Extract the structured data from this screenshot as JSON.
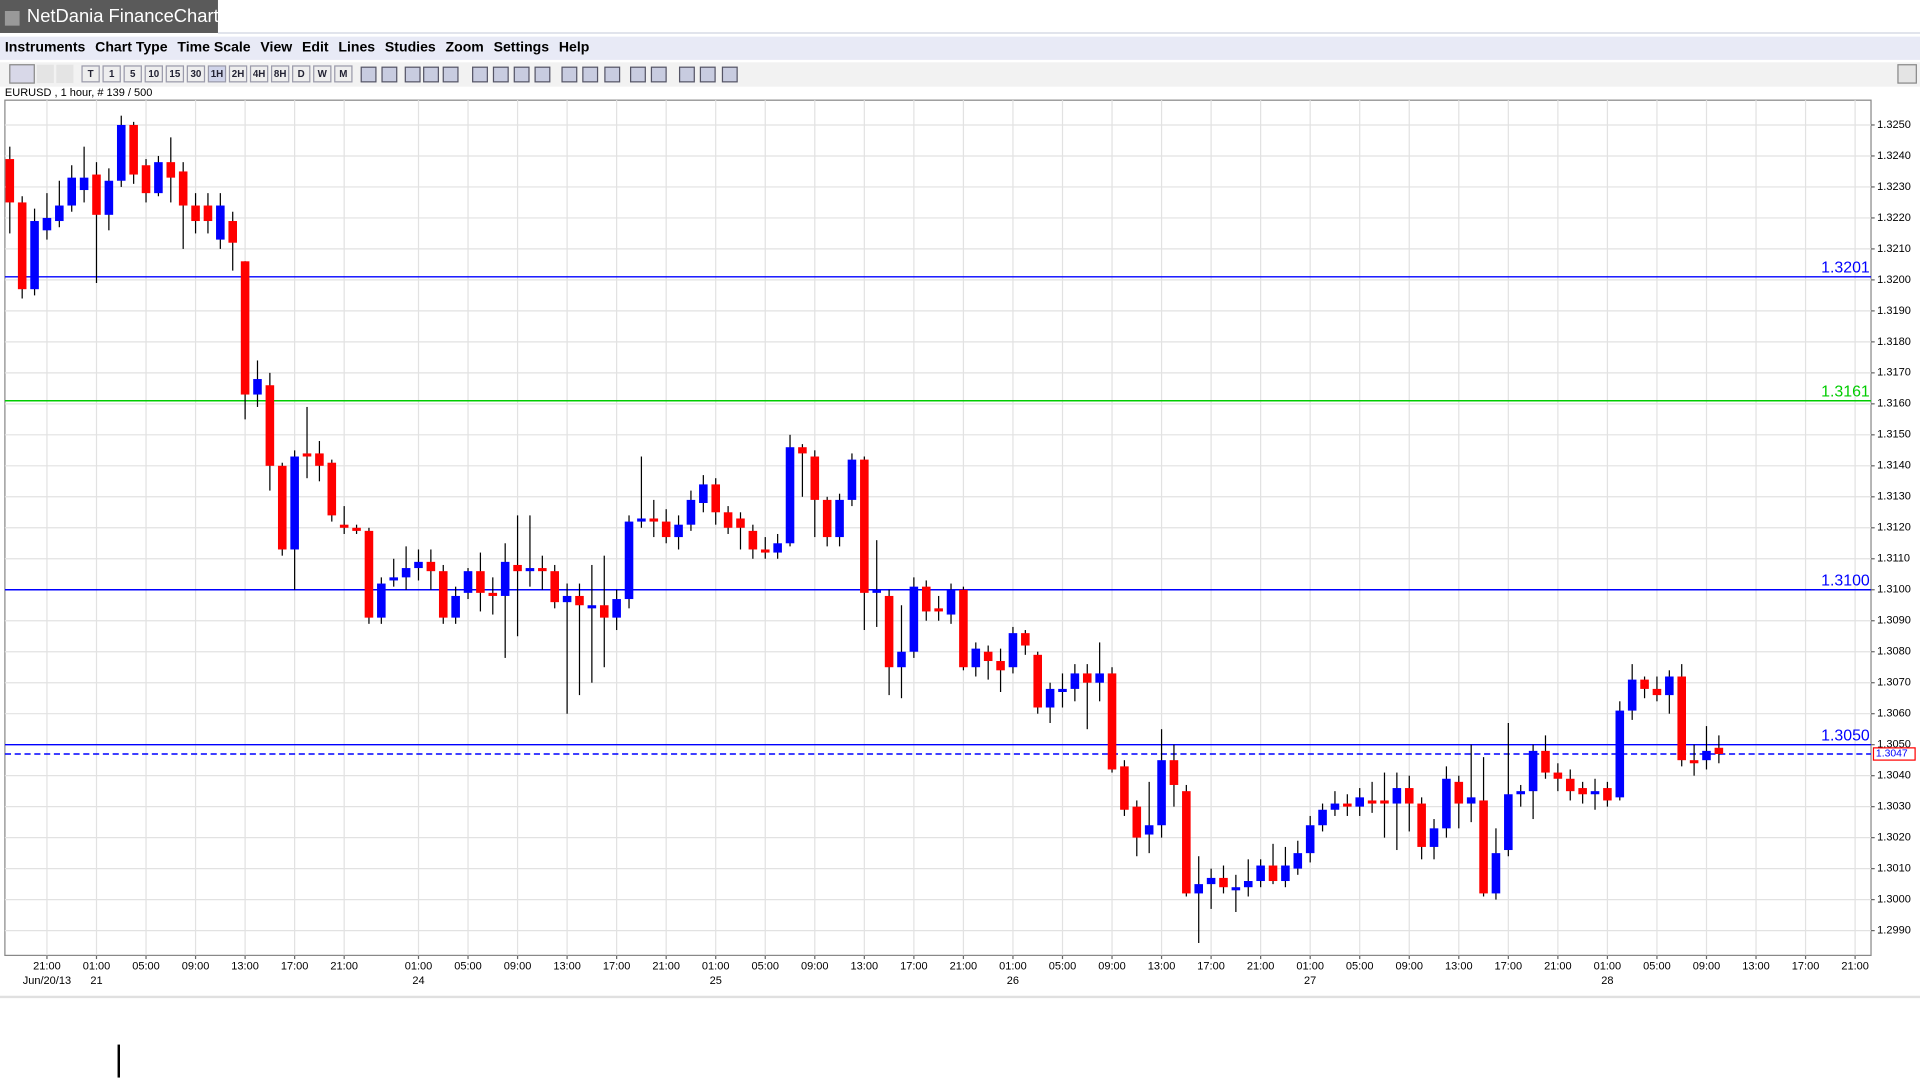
{
  "app": {
    "title": "NetDania FinanceChart"
  },
  "menu": [
    "Instruments",
    "Chart Type",
    "Time Scale",
    "View",
    "Edit",
    "Lines",
    "Studies",
    "Zoom",
    "Settings",
    "Help"
  ],
  "toolbar": {
    "timeframes": [
      "T",
      "1",
      "5",
      "10",
      "15",
      "30",
      "1H",
      "2H",
      "4H",
      "8H",
      "D",
      "W",
      "M"
    ]
  },
  "chart_data": {
    "type": "candlestick",
    "instrument_label": "EURUSD , 1 hour, # 139 / 500",
    "categories": [
      null,
      null,
      null,
      "21:00",
      null,
      null,
      null,
      "01:00",
      null,
      null,
      null,
      "05:00",
      null,
      null,
      null,
      "09:00",
      null,
      null,
      null,
      "13:00",
      null,
      null,
      null,
      "17:00",
      null,
      null,
      null,
      "21:00",
      null,
      null,
      null,
      null,
      null,
      "01:00",
      null,
      null,
      null,
      "05:00",
      null,
      null,
      null,
      "09:00",
      null,
      null,
      null,
      "13:00",
      null,
      null,
      null,
      "17:00",
      null,
      null,
      null,
      "21:00",
      null,
      null,
      null,
      "01:00",
      null,
      null,
      null,
      "05:00",
      null,
      null,
      null,
      "09:00",
      null,
      null,
      null,
      "13:00",
      null,
      null,
      null,
      "17:00",
      null,
      null,
      null,
      "21:00",
      null,
      null,
      null,
      "01:00",
      null,
      null,
      null,
      "05:00",
      null,
      null,
      null,
      "09:00",
      null,
      null,
      null,
      "13:00",
      null,
      null,
      null,
      "17:00",
      null,
      null,
      null,
      "21:00",
      null,
      null,
      null,
      "01:00",
      null,
      null,
      null,
      "05:00",
      null,
      null,
      null,
      "09:00",
      null,
      null,
      null,
      "13:00",
      null,
      null,
      null,
      "17:00",
      null,
      null,
      null,
      "21:00",
      null,
      null,
      null,
      "01:00",
      null,
      null,
      null,
      "05:00",
      null,
      null,
      null,
      "09:00",
      null,
      null,
      null,
      "13:00",
      null,
      null,
      null,
      "17:00",
      null,
      null,
      null,
      "21:00"
    ],
    "date_labels": [
      null,
      null,
      null,
      "Jun/20/13",
      null,
      null,
      null,
      "21",
      null,
      null,
      null,
      null,
      null,
      null,
      null,
      null,
      null,
      null,
      null,
      null,
      null,
      null,
      null,
      null,
      null,
      null,
      null,
      null,
      null,
      null,
      null,
      null,
      null,
      "24",
      null,
      null,
      null,
      null,
      null,
      null,
      null,
      null,
      null,
      null,
      null,
      null,
      null,
      null,
      null,
      null,
      null,
      null,
      null,
      null,
      null,
      null,
      null,
      "25",
      null,
      null,
      null,
      null,
      null,
      null,
      null,
      null,
      null,
      null,
      null,
      null,
      null,
      null,
      null,
      null,
      null,
      null,
      null,
      null,
      null,
      null,
      null,
      "26",
      null,
      null,
      null,
      null,
      null,
      null,
      null,
      null,
      null,
      null,
      null,
      null,
      null,
      null,
      null,
      null,
      null,
      null,
      null,
      null,
      null,
      null,
      null,
      "27",
      null,
      null,
      null,
      null,
      null,
      null,
      null,
      null,
      null,
      null,
      null,
      null,
      null,
      null,
      null,
      null,
      null,
      null,
      null,
      null,
      null,
      null,
      null,
      "28",
      null,
      null,
      null,
      null,
      null,
      null,
      null,
      null,
      null,
      null,
      null,
      null,
      null,
      null,
      null,
      null,
      null,
      null,
      null,
      null
    ],
    "open": [
      1.3239,
      1.3225,
      1.3197,
      1.3216,
      1.3219,
      1.3224,
      1.3229,
      1.3234,
      1.3221,
      1.3232,
      1.325,
      1.3237,
      1.3228,
      1.3238,
      1.3235,
      1.3224,
      1.3224,
      1.3213,
      1.3219,
      1.3206,
      1.3163,
      1.3166,
      1.314,
      1.3113,
      1.3144,
      1.3144,
      1.3141,
      1.3121,
      1.312,
      1.3119,
      1.3091,
      1.3103,
      1.3104,
      1.3107,
      1.3109,
      1.3106,
      1.3091,
      1.3099,
      1.3106,
      1.3099,
      1.3098,
      1.3108,
      1.3106,
      1.3107,
      1.3106,
      1.3096,
      1.3098,
      1.3094,
      1.3095,
      1.3091,
      1.3097,
      1.3122,
      1.3123,
      1.3122,
      1.3117,
      1.3121,
      1.3128,
      1.3134,
      1.3125,
      1.3123,
      1.3119,
      1.3113,
      1.3112,
      1.3115,
      1.3146,
      1.3143,
      1.3129,
      1.3117,
      1.3129,
      1.3142,
      1.3099,
      1.3098,
      1.3075,
      1.308,
      1.3101,
      1.3094,
      1.3092,
      1.31,
      1.3075,
      1.308,
      1.3077,
      1.3075,
      1.3086,
      1.3079,
      1.3062,
      1.3067,
      1.3068,
      1.3073,
      1.307,
      1.3073,
      1.3043,
      1.303,
      1.3021,
      1.3024,
      1.3045,
      1.3035,
      1.3002,
      1.3005,
      1.3007,
      1.3003,
      1.3004,
      1.3006,
      1.3011,
      1.3006,
      1.301,
      1.3015,
      1.3024,
      1.3029,
      1.3031,
      1.303,
      1.3032,
      1.3032,
      1.3031,
      1.3036,
      1.3031,
      1.3017,
      1.3023,
      1.3038,
      1.3031,
      1.3032,
      1.3002,
      1.3016,
      1.3034,
      1.3035,
      1.3048,
      1.3041,
      1.3039,
      1.3036,
      1.3034,
      1.3036,
      1.3033,
      1.3061,
      1.3071,
      1.3068,
      1.3066,
      1.3072,
      1.3045,
      1.3045,
      1.3049,
      null,
      null,
      null,
      null,
      null,
      null,
      null,
      null,
      null,
      null,
      null
    ],
    "high": [
      1.3243,
      1.3227,
      1.3223,
      1.3228,
      1.3232,
      1.3237,
      1.3243,
      1.3238,
      1.3236,
      1.3253,
      1.3251,
      1.3239,
      1.324,
      1.3246,
      1.3238,
      1.3228,
      1.3228,
      1.3228,
      1.3222,
      1.3206,
      1.3174,
      1.317,
      1.3141,
      1.3145,
      1.3159,
      1.3148,
      1.3142,
      1.3127,
      1.3121,
      1.312,
      1.3104,
      1.311,
      1.3114,
      1.3113,
      1.3113,
      1.3108,
      1.3101,
      1.3107,
      1.3112,
      1.3104,
      1.3115,
      1.3124,
      1.3124,
      1.3111,
      1.3108,
      1.3102,
      1.3102,
      1.3108,
      1.3111,
      1.31,
      1.3124,
      1.3143,
      1.3129,
      1.3126,
      1.3124,
      1.3132,
      1.3137,
      1.3136,
      1.3127,
      1.3125,
      1.3121,
      1.3117,
      1.3118,
      1.315,
      1.3147,
      1.3145,
      1.313,
      1.3131,
      1.3144,
      1.3143,
      1.3116,
      1.31,
      1.3095,
      1.3104,
      1.3103,
      1.3098,
      1.3102,
      1.3101,
      1.3083,
      1.3082,
      1.3081,
      1.3088,
      1.3087,
      1.308,
      1.307,
      1.3073,
      1.3076,
      1.3076,
      1.3083,
      1.3075,
      1.3045,
      1.3032,
      1.3038,
      1.3055,
      1.305,
      1.3037,
      1.3014,
      1.301,
      1.3011,
      1.3008,
      1.3013,
      1.3013,
      1.3018,
      1.3017,
      1.3019,
      1.3027,
      1.3031,
      1.3035,
      1.3034,
      1.3036,
      1.3038,
      1.3041,
      1.3041,
      1.304,
      1.3033,
      1.3026,
      1.3043,
      1.304,
      1.305,
      1.3046,
      1.3023,
      1.3057,
      1.3037,
      1.305,
      1.3053,
      1.3044,
      1.3042,
      1.3038,
      1.3039,
      1.3038,
      1.3064,
      1.3076,
      1.3072,
      1.3072,
      1.3074,
      1.3076,
      1.305,
      1.3056,
      1.3053,
      null,
      null,
      null,
      null,
      null,
      null,
      null,
      null,
      null,
      null,
      null
    ],
    "low": [
      1.3215,
      1.3194,
      1.3195,
      1.3213,
      1.3217,
      1.3222,
      1.3225,
      1.3199,
      1.3216,
      1.323,
      1.3231,
      1.3225,
      1.3227,
      1.3225,
      1.321,
      1.3215,
      1.3215,
      1.321,
      1.3203,
      1.3155,
      1.3159,
      1.3132,
      1.3111,
      1.31,
      1.3136,
      1.3135,
      1.3122,
      1.3118,
      1.3118,
      1.3089,
      1.3089,
      1.3101,
      1.31,
      1.3103,
      1.31,
      1.3089,
      1.3089,
      1.3097,
      1.3093,
      1.3092,
      1.3078,
      1.3085,
      1.3101,
      1.31,
      1.3094,
      1.306,
      1.3066,
      1.307,
      1.3075,
      1.3087,
      1.3094,
      1.312,
      1.3117,
      1.3115,
      1.3113,
      1.3119,
      1.3125,
      1.3121,
      1.3118,
      1.3113,
      1.311,
      1.311,
      1.311,
      1.3114,
      1.313,
      1.3117,
      1.3114,
      1.3114,
      1.3127,
      1.3087,
      1.3088,
      1.3066,
      1.3065,
      1.3078,
      1.309,
      1.309,
      1.3089,
      1.3074,
      1.3072,
      1.3071,
      1.3067,
      1.3073,
      1.3079,
      1.306,
      1.3057,
      1.3062,
      1.3064,
      1.3055,
      1.3064,
      1.3041,
      1.3027,
      1.3014,
      1.3015,
      1.302,
      1.303,
      1.3001,
      1.2986,
      1.2997,
      1.3002,
      1.2996,
      1.3001,
      1.3004,
      1.3005,
      1.3004,
      1.3008,
      1.3012,
      1.3022,
      1.3027,
      1.3027,
      1.3027,
      1.3028,
      1.302,
      1.3016,
      1.3022,
      1.3013,
      1.3013,
      1.302,
      1.3023,
      1.3025,
      1.3001,
      1.3,
      1.3014,
      1.303,
      1.3026,
      1.3039,
      1.3035,
      1.3032,
      1.3031,
      1.3029,
      1.303,
      1.3032,
      1.3058,
      1.3065,
      1.3064,
      1.306,
      1.3043,
      1.304,
      1.3042,
      1.3044,
      null,
      null,
      null,
      null,
      null,
      null,
      null,
      null,
      null,
      null,
      null
    ],
    "close": [
      1.3225,
      1.3197,
      1.3219,
      1.322,
      1.3224,
      1.3233,
      1.3233,
      1.3221,
      1.3232,
      1.325,
      1.3234,
      1.3228,
      1.3238,
      1.3233,
      1.3224,
      1.3219,
      1.3219,
      1.3224,
      1.3212,
      1.3163,
      1.3168,
      1.314,
      1.3113,
      1.3143,
      1.3143,
      1.314,
      1.3124,
      1.312,
      1.3119,
      1.3091,
      1.3102,
      1.3104,
      1.3107,
      1.3109,
      1.3106,
      1.3091,
      1.3098,
      1.3106,
      1.3099,
      1.3098,
      1.3109,
      1.3106,
      1.3107,
      1.3106,
      1.3096,
      1.3098,
      1.3095,
      1.3095,
      1.3091,
      1.3097,
      1.3122,
      1.3123,
      1.3122,
      1.3117,
      1.3121,
      1.3129,
      1.3134,
      1.3125,
      1.312,
      1.312,
      1.3113,
      1.3112,
      1.3115,
      1.3146,
      1.3144,
      1.3129,
      1.3117,
      1.3129,
      1.3142,
      1.3099,
      1.31,
      1.3075,
      1.308,
      1.3101,
      1.3093,
      1.3093,
      1.31,
      1.3075,
      1.3081,
      1.3077,
      1.3074,
      1.3086,
      1.3082,
      1.3062,
      1.3068,
      1.3068,
      1.3073,
      1.307,
      1.3073,
      1.3042,
      1.3029,
      1.302,
      1.3024,
      1.3045,
      1.3037,
      1.3002,
      1.3005,
      1.3007,
      1.3004,
      1.3004,
      1.3006,
      1.3011,
      1.3006,
      1.3011,
      1.3015,
      1.3024,
      1.3029,
      1.3031,
      1.303,
      1.3033,
      1.3031,
      1.3031,
      1.3036,
      1.3031,
      1.3017,
      1.3023,
      1.3039,
      1.3031,
      1.3033,
      1.3002,
      1.3015,
      1.3034,
      1.3035,
      1.3048,
      1.3041,
      1.3039,
      1.3035,
      1.3034,
      1.3035,
      1.3032,
      1.3061,
      1.3071,
      1.3068,
      1.3066,
      1.3072,
      1.3045,
      1.3044,
      1.3048,
      1.3047,
      null,
      null,
      null,
      null,
      null,
      null,
      null,
      null,
      null,
      null,
      null
    ],
    "up_color": "#0000ff",
    "down_color": "#ff0000",
    "wick_color": "#000000",
    "ylim": [
      1.2982,
      1.3258
    ],
    "yticks": [
      {
        "value": 1.299,
        "label": "1.2990"
      },
      {
        "value": 1.3,
        "label": "1.3000"
      },
      {
        "value": 1.301,
        "label": "1.3010"
      },
      {
        "value": 1.302,
        "label": "1.3020"
      },
      {
        "value": 1.303,
        "label": "1.3030"
      },
      {
        "value": 1.304,
        "label": "1.3040"
      },
      {
        "value": 1.305,
        "label": "1.3050"
      },
      {
        "value": 1.306,
        "label": "1.3060"
      },
      {
        "value": 1.307,
        "label": "1.3070"
      },
      {
        "value": 1.308,
        "label": "1.3080"
      },
      {
        "value": 1.309,
        "label": "1.3090"
      },
      {
        "value": 1.31,
        "label": "1.3100"
      },
      {
        "value": 1.311,
        "label": "1.3110"
      },
      {
        "value": 1.312,
        "label": "1.3120"
      },
      {
        "value": 1.313,
        "label": "1.3130"
      },
      {
        "value": 1.314,
        "label": "1.3140"
      },
      {
        "value": 1.315,
        "label": "1.3150"
      },
      {
        "value": 1.316,
        "label": "1.3160"
      },
      {
        "value": 1.317,
        "label": "1.3170"
      },
      {
        "value": 1.318,
        "label": "1.3180"
      },
      {
        "value": 1.319,
        "label": "1.3190"
      },
      {
        "value": 1.32,
        "label": "1.3200"
      },
      {
        "value": 1.321,
        "label": "1.3210"
      },
      {
        "value": 1.322,
        "label": "1.3220"
      },
      {
        "value": 1.323,
        "label": "1.3230"
      },
      {
        "value": 1.324,
        "label": "1.3240"
      },
      {
        "value": 1.325,
        "label": "1.3250"
      }
    ],
    "grid": true,
    "levels": [
      {
        "value": 1.3201,
        "color": "#0000ff",
        "style": "solid"
      },
      {
        "value": 1.3161,
        "color": "#00cc00",
        "style": "solid"
      },
      {
        "value": 1.31,
        "label": "1.3100",
        "color": "#0000ff",
        "style": "solid"
      },
      {
        "value": 1.305,
        "label": "1.3050",
        "color": "#0000ff",
        "style": "solid"
      },
      {
        "value": 1.3047,
        "color": "#0000ff",
        "style": "dashed"
      }
    ]
  }
}
